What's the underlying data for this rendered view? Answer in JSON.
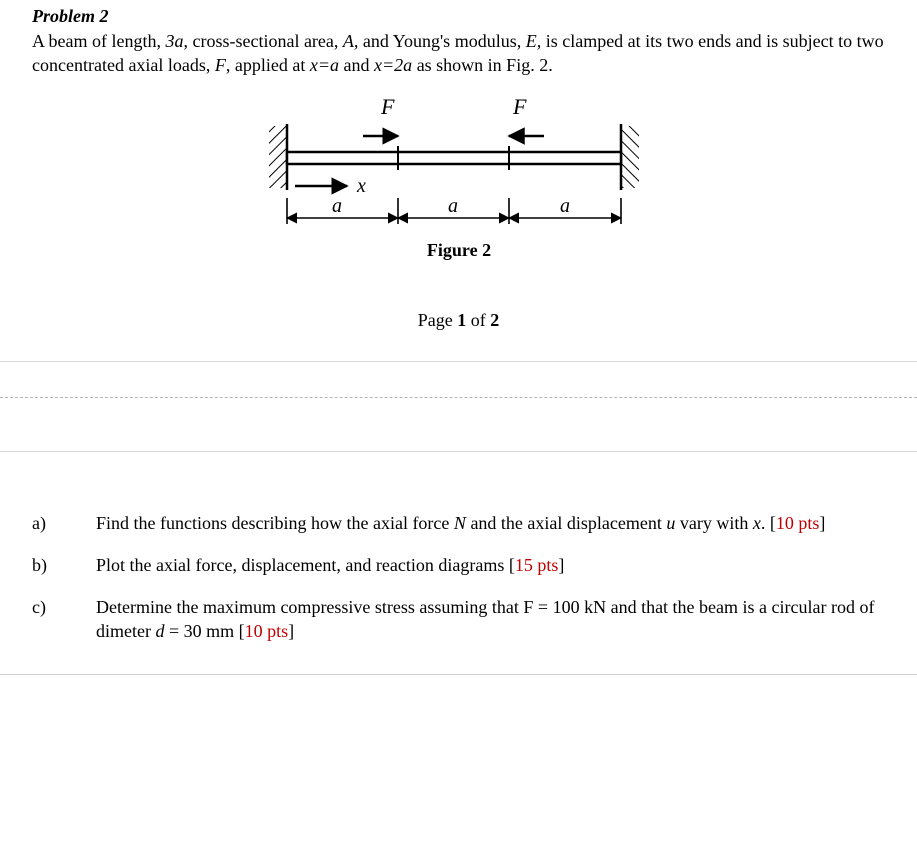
{
  "problem_title": "Problem 2",
  "intro_segments": [
    {
      "t": "A beam of length, "
    },
    {
      "t": "3a",
      "i": true
    },
    {
      "t": ", cross-sectional area, "
    },
    {
      "t": "A,",
      "i": true
    },
    {
      "t": " and Young's modulus, "
    },
    {
      "t": "E,",
      "i": true
    },
    {
      "t": " is clamped at its two ends and is subject to two concentrated axial loads, "
    },
    {
      "t": "F",
      "i": true
    },
    {
      "t": ", applied at "
    },
    {
      "t": "x=a",
      "i": true
    },
    {
      "t": " and "
    },
    {
      "t": "x=2a",
      "i": true
    },
    {
      "t": " as shown in Fig. 2."
    }
  ],
  "figure": {
    "caption": "Figure 2",
    "F_left": "F",
    "F_right": "F",
    "x_label": "x",
    "seg_labels": [
      "a",
      "a",
      "a"
    ]
  },
  "page_num_prefix": "Page ",
  "page_num_1": "1",
  "page_num_of": " of ",
  "page_num_2": "2",
  "questions": [
    {
      "label": "a)",
      "segments": [
        {
          "t": "Find the functions describing how the axial force "
        },
        {
          "t": "N",
          "i": true
        },
        {
          "t": " and the axial displacement "
        },
        {
          "t": "u",
          "i": true
        },
        {
          "t": " vary with "
        },
        {
          "t": "x",
          "i": true
        },
        {
          "t": ". ["
        },
        {
          "t": "10 pts",
          "pts": true
        },
        {
          "t": "]"
        }
      ]
    },
    {
      "label": "b)",
      "segments": [
        {
          "t": "Plot the axial force, displacement, and reaction diagrams  ["
        },
        {
          "t": "15 pts",
          "pts": true
        },
        {
          "t": "]"
        }
      ]
    },
    {
      "label": "c)",
      "segments": [
        {
          "t": "Determine the maximum compressive stress assuming that F = 100 kN and that the beam is a circular rod of dimeter "
        },
        {
          "t": "d",
          "i": true
        },
        {
          "t": " = 30 mm  ["
        },
        {
          "t": "10 pts",
          "pts": true
        },
        {
          "t": "]"
        }
      ]
    }
  ]
}
